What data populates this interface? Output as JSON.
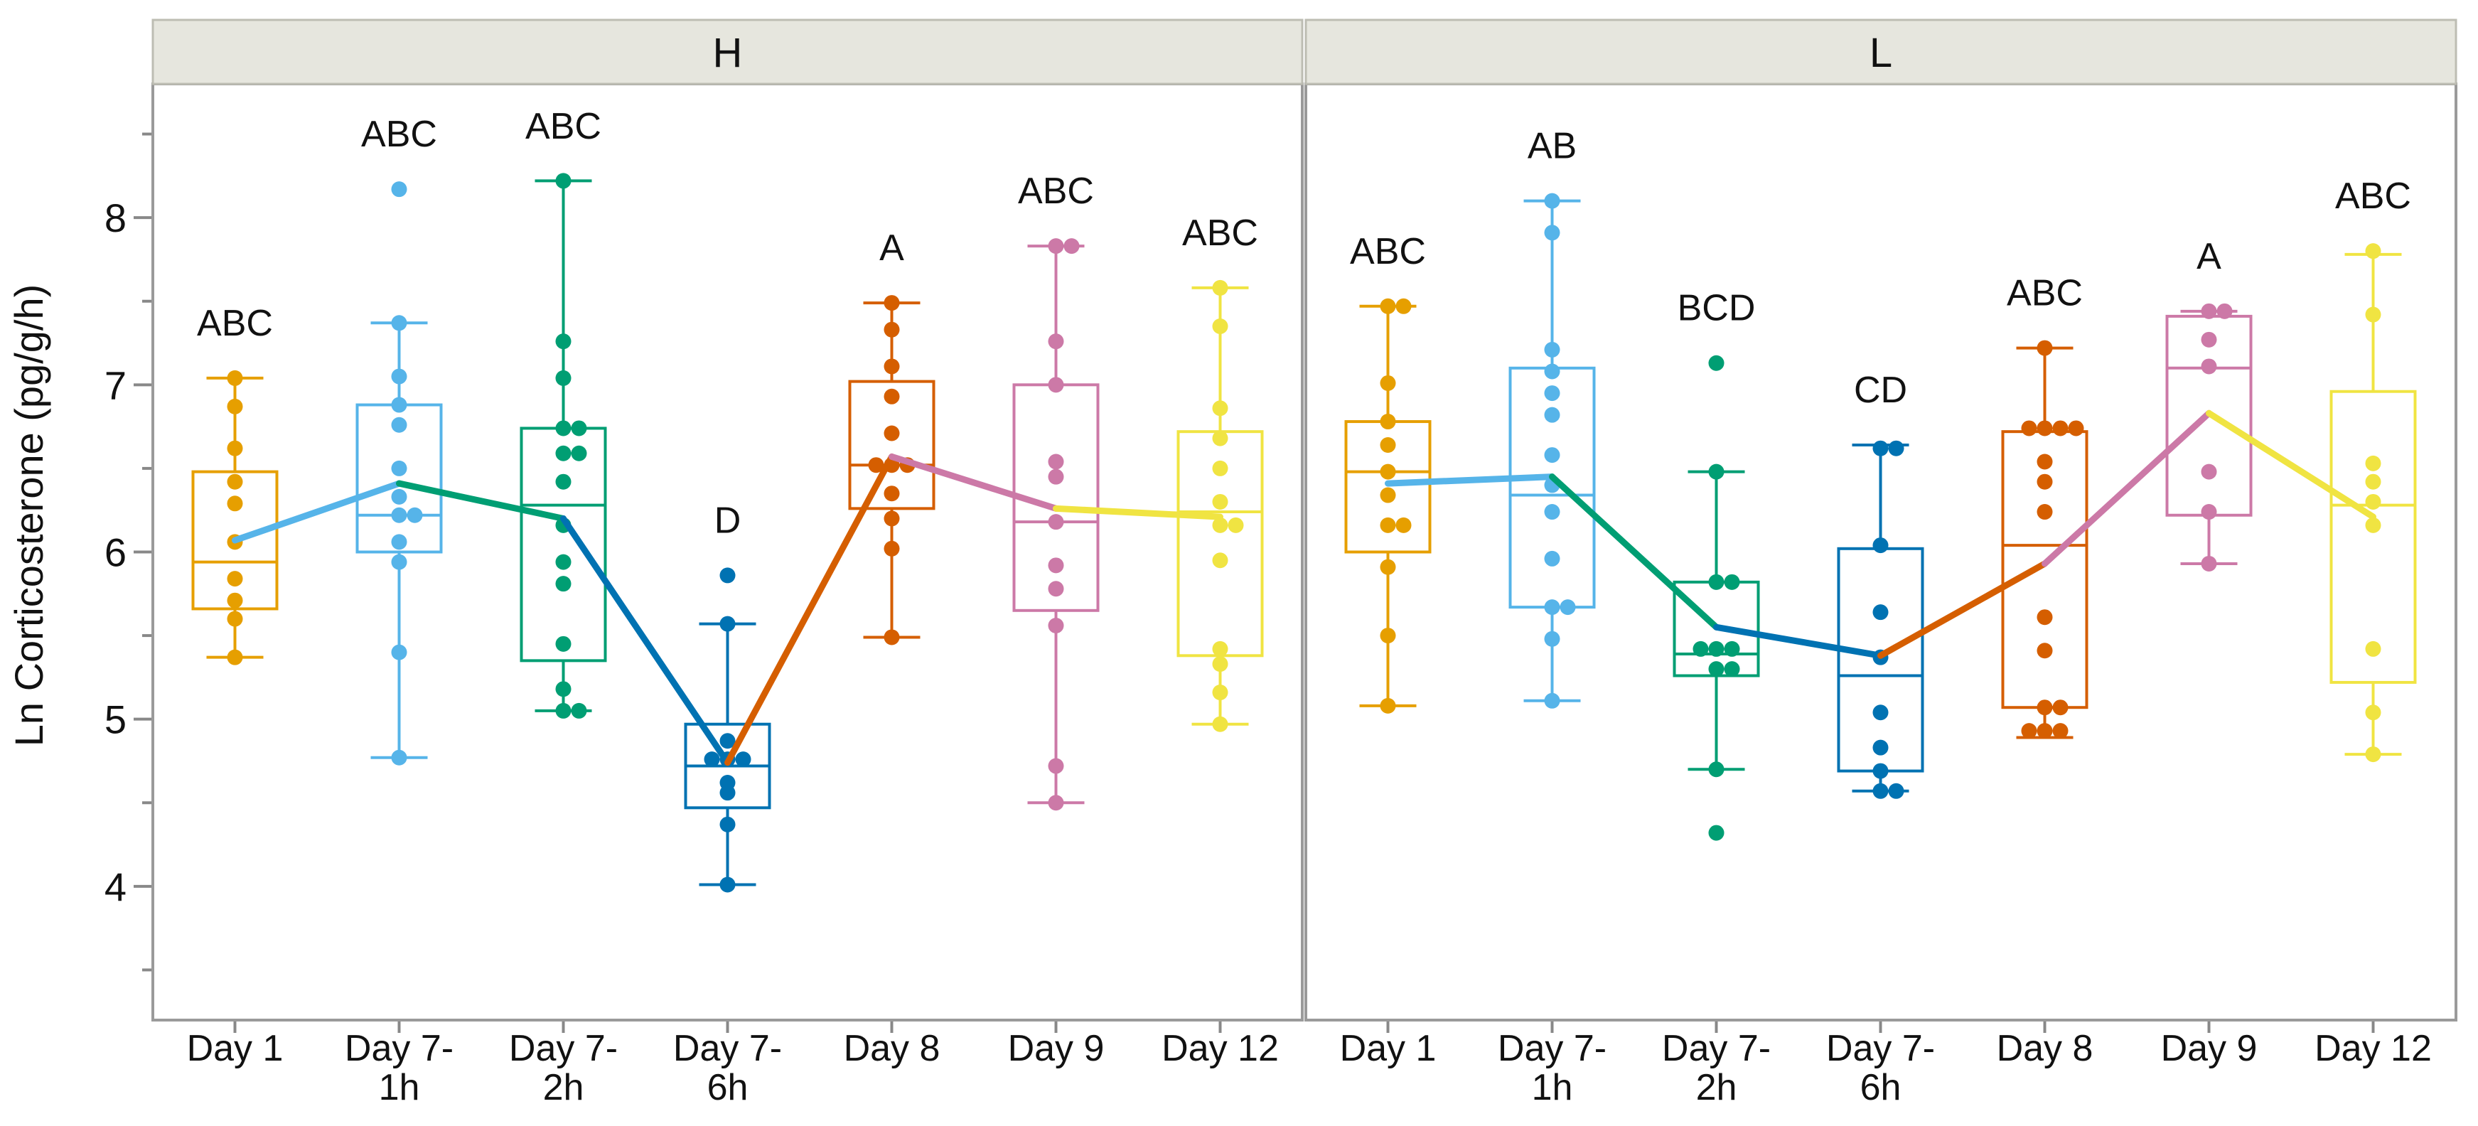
{
  "chart_data": {
    "type": "box",
    "ylabel": "Ln Corticosterone (pg/g/h)",
    "xlabel": "",
    "ylim": [
      3.2,
      8.8
    ],
    "yticks": [
      4,
      5,
      6,
      7,
      8
    ],
    "yminor": [
      3.5,
      4.5,
      5.5,
      6.5,
      7.5,
      8.5
    ],
    "panels": [
      {
        "name": "H",
        "groups": [
          {
            "label": [
              "Day 1"
            ],
            "color": "#e69f00",
            "sig": "ABC",
            "box": {
              "min": 5.37,
              "q1": 5.66,
              "median": 5.94,
              "q3": 6.48,
              "max": 7.04
            },
            "mean": 6.07,
            "points": [
              7.04,
              6.87,
              6.62,
              6.42,
              6.29,
              6.06,
              5.84,
              5.71,
              5.6,
              5.37
            ]
          },
          {
            "label": [
              "Day 7-",
              "1h"
            ],
            "color": "#56b4e9",
            "sig": "ABC",
            "box": {
              "min": 4.77,
              "q1": 6.0,
              "median": 6.22,
              "q3": 6.88,
              "max": 7.37
            },
            "mean": 6.41,
            "points": [
              8.17,
              7.37,
              7.05,
              6.88,
              6.76,
              6.5,
              6.33,
              6.22,
              6.22,
              6.06,
              5.94,
              5.4,
              4.77
            ]
          },
          {
            "label": [
              "Day 7-",
              "2h"
            ],
            "color": "#009e73",
            "sig": "ABC",
            "box": {
              "min": 5.05,
              "q1": 5.35,
              "median": 6.28,
              "q3": 6.74,
              "max": 8.22
            },
            "mean": 6.2,
            "points": [
              8.22,
              7.26,
              7.04,
              6.74,
              6.74,
              6.59,
              6.59,
              6.42,
              6.16,
              5.94,
              5.81,
              5.45,
              5.18,
              5.05,
              5.05
            ]
          },
          {
            "label": [
              "Day 7-",
              "6h"
            ],
            "color": "#0072b2",
            "sig": "D",
            "box": {
              "min": 4.01,
              "q1": 4.47,
              "median": 4.72,
              "q3": 4.97,
              "max": 5.57
            },
            "mean": 4.74,
            "points": [
              5.86,
              5.57,
              4.87,
              4.76,
              4.76,
              4.76,
              4.62,
              4.56,
              4.37,
              4.01
            ]
          },
          {
            "label": [
              "Day 8"
            ],
            "color": "#d55e00",
            "sig": "A",
            "box": {
              "min": 5.49,
              "q1": 6.26,
              "median": 6.52,
              "q3": 7.02,
              "max": 7.49
            },
            "mean": 6.57,
            "points": [
              7.49,
              7.33,
              7.11,
              6.93,
              6.71,
              6.52,
              6.52,
              6.52,
              6.35,
              6.2,
              6.02,
              5.49
            ]
          },
          {
            "label": [
              "Day 9"
            ],
            "color": "#cc79a7",
            "sig": "ABC",
            "box": {
              "min": 4.5,
              "q1": 5.65,
              "median": 6.18,
              "q3": 7.0,
              "max": 7.83
            },
            "mean": 6.26,
            "points": [
              7.83,
              7.83,
              7.26,
              7.0,
              6.54,
              6.45,
              6.18,
              5.92,
              5.78,
              5.56,
              4.72,
              4.5
            ]
          },
          {
            "label": [
              "Day 12"
            ],
            "color": "#f0e442",
            "sig": "ABC",
            "box": {
              "min": 4.97,
              "q1": 5.38,
              "median": 6.24,
              "q3": 6.72,
              "max": 7.58
            },
            "mean": 6.21,
            "points": [
              7.58,
              7.35,
              6.86,
              6.68,
              6.5,
              6.3,
              6.16,
              6.16,
              5.95,
              5.42,
              5.33,
              5.16,
              4.97
            ]
          }
        ]
      },
      {
        "name": "L",
        "groups": [
          {
            "label": [
              "Day 1"
            ],
            "color": "#e69f00",
            "sig": "ABC",
            "box": {
              "min": 5.08,
              "q1": 6.0,
              "median": 6.48,
              "q3": 6.78,
              "max": 7.47
            },
            "mean": 6.41,
            "points": [
              7.47,
              7.47,
              7.01,
              6.78,
              6.64,
              6.48,
              6.34,
              6.16,
              6.16,
              5.91,
              5.5,
              5.08
            ]
          },
          {
            "label": [
              "Day 7-",
              "1h"
            ],
            "color": "#56b4e9",
            "sig": "AB",
            "box": {
              "min": 5.11,
              "q1": 5.67,
              "median": 6.34,
              "q3": 7.1,
              "max": 8.1
            },
            "mean": 6.45,
            "points": [
              8.1,
              7.91,
              7.21,
              7.08,
              6.95,
              6.82,
              6.58,
              6.4,
              6.24,
              5.96,
              5.67,
              5.67,
              5.48,
              5.11
            ]
          },
          {
            "label": [
              "Day 7-",
              "2h"
            ],
            "color": "#009e73",
            "sig": "BCD",
            "box": {
              "min": 4.7,
              "q1": 5.26,
              "median": 5.39,
              "q3": 5.82,
              "max": 6.48
            },
            "mean": 5.55,
            "points": [
              7.13,
              6.48,
              5.82,
              5.82,
              5.42,
              5.42,
              5.42,
              5.3,
              5.3,
              4.7,
              4.32
            ]
          },
          {
            "label": [
              "Day 7-",
              "6h"
            ],
            "color": "#0072b2",
            "sig": "CD",
            "box": {
              "min": 4.57,
              "q1": 4.69,
              "median": 5.26,
              "q3": 6.02,
              "max": 6.64
            },
            "mean": 5.38,
            "points": [
              6.62,
              6.62,
              6.04,
              5.64,
              5.37,
              5.04,
              4.83,
              4.69,
              4.57,
              4.57
            ]
          },
          {
            "label": [
              "Day 8"
            ],
            "color": "#d55e00",
            "sig": "ABC",
            "box": {
              "min": 4.89,
              "q1": 5.07,
              "median": 6.04,
              "q3": 6.72,
              "max": 7.22
            },
            "mean": 5.93,
            "points": [
              7.22,
              6.74,
              6.74,
              6.74,
              6.74,
              6.54,
              6.42,
              6.24,
              5.61,
              5.41,
              5.07,
              5.07,
              4.93,
              4.93,
              4.93
            ]
          },
          {
            "label": [
              "Day 9"
            ],
            "color": "#cc79a7",
            "sig": "A",
            "box": {
              "min": 5.93,
              "q1": 6.22,
              "median": 7.1,
              "q3": 7.41,
              "max": 7.44
            },
            "mean": 6.83,
            "points": [
              7.44,
              7.44,
              7.27,
              7.11,
              6.48,
              6.24,
              5.93
            ]
          },
          {
            "label": [
              "Day 12"
            ],
            "color": "#f0e442",
            "sig": "ABC",
            "box": {
              "min": 4.79,
              "q1": 5.22,
              "median": 6.28,
              "q3": 6.96,
              "max": 7.78
            },
            "mean": 6.21,
            "points": [
              7.8,
              7.42,
              6.53,
              6.42,
              6.3,
              6.16,
              5.42,
              5.04,
              4.79
            ]
          }
        ]
      }
    ]
  }
}
